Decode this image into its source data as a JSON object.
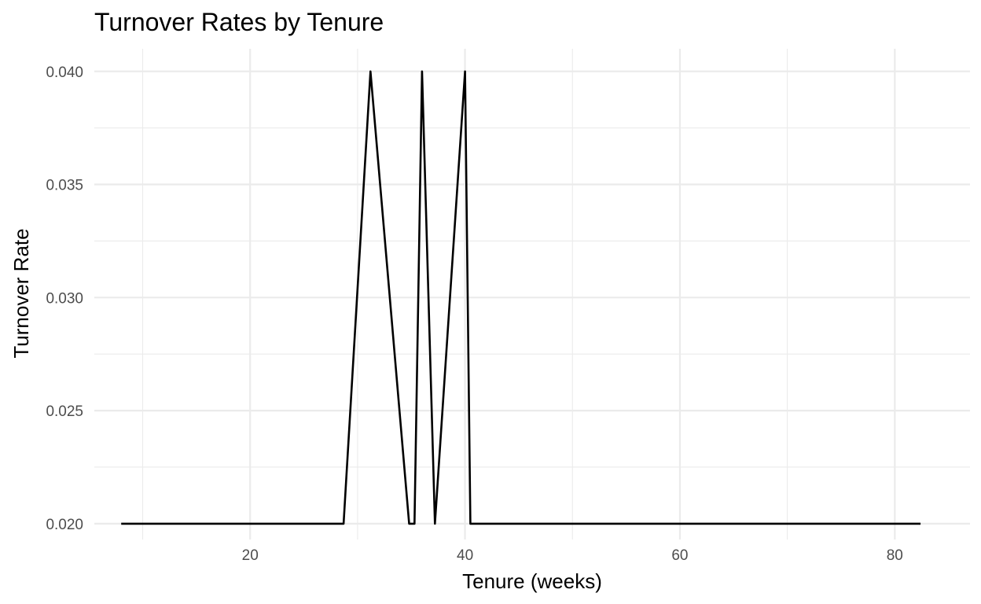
{
  "chart_data": {
    "type": "line",
    "title": "Turnover Rates by Tenure",
    "xlabel": "Tenure (weeks)",
    "ylabel": "Turnover Rate",
    "xlim": [
      5.5,
      87
    ],
    "ylim": [
      0.0193,
      0.041
    ],
    "x_major_ticks": [
      20,
      40,
      60,
      80
    ],
    "x_tick_labels": [
      "20",
      "40",
      "60",
      "80"
    ],
    "x_minor_ticks": [
      10,
      30,
      50,
      70
    ],
    "y_major_ticks": [
      0.02,
      0.025,
      0.03,
      0.035,
      0.04
    ],
    "y_tick_labels": [
      "0.020",
      "0.025",
      "0.030",
      "0.035",
      "0.040"
    ],
    "y_minor_ticks": [
      0.0225,
      0.0275,
      0.0325,
      0.0375
    ],
    "grid": true,
    "legend": "none",
    "line_color": "#000000",
    "series": [
      {
        "x": [
          8,
          28.7,
          31.2,
          34.8,
          35.3,
          36.0,
          37.2,
          40.0,
          40.5,
          82.4
        ],
        "y": [
          0.02,
          0.02,
          0.04,
          0.02,
          0.02,
          0.04,
          0.02,
          0.04,
          0.02,
          0.02
        ]
      }
    ]
  }
}
